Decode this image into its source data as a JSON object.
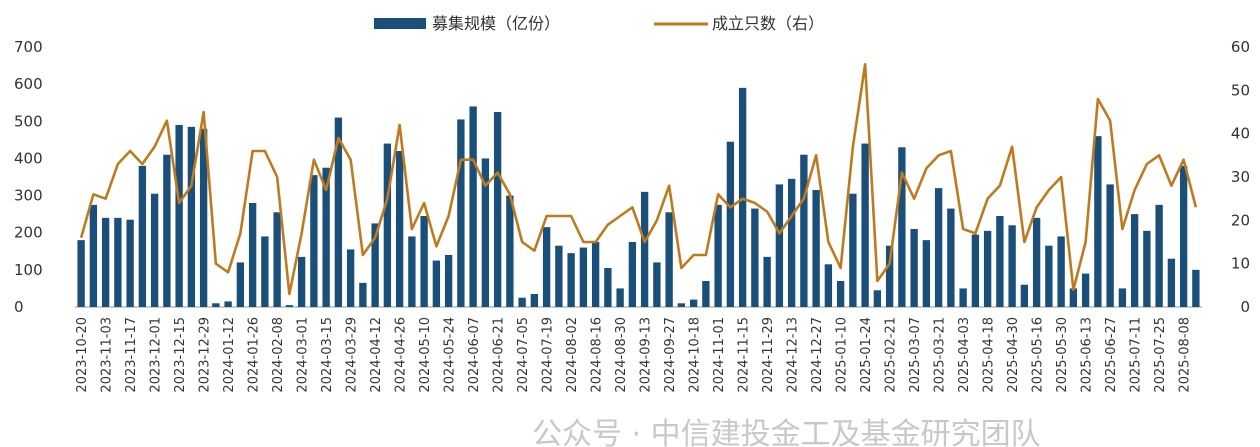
{
  "chart_data": {
    "type": "bar+line",
    "colors": {
      "bar": "#1a4f7a",
      "line": "#c07a1e"
    },
    "legend": {
      "placement": "top-center",
      "bar_label": "募集规模（亿份）",
      "line_label": "成立只数（右）"
    },
    "y_left": {
      "ylim": [
        0,
        700
      ],
      "ticks": [
        "0",
        "100",
        "200",
        "300",
        "400",
        "500",
        "600",
        "700"
      ]
    },
    "y_right": {
      "ylim": [
        0,
        60
      ],
      "ticks": [
        "0",
        "10",
        "20",
        "30",
        "40",
        "50",
        "60"
      ]
    },
    "x_tick_labels": [
      "2023-10-20",
      "2023-11-03",
      "2023-11-17",
      "2023-12-01",
      "2023-12-15",
      "2023-12-29",
      "2024-01-12",
      "2024-01-26",
      "2024-02-08",
      "2024-03-01",
      "2024-03-15",
      "2024-03-29",
      "2024-04-12",
      "2024-04-26",
      "2024-05-10",
      "2024-05-24",
      "2024-06-07",
      "2024-06-21",
      "2024-07-05",
      "2024-07-19",
      "2024-08-02",
      "2024-08-16",
      "2024-08-30",
      "2024-09-13",
      "2024-09-27",
      "2024-10-18",
      "2024-11-01",
      "2024-11-15",
      "2024-11-29",
      "2024-12-13",
      "2024-12-27",
      "2025-01-10",
      "2025-01-24",
      "2025-02-21",
      "2025-03-07",
      "2025-03-21",
      "2025-04-03",
      "2025-04-18",
      "2025-04-30",
      "2025-05-16",
      "2025-05-30",
      "2025-06-13",
      "2025-06-27",
      "2025-07-11",
      "2025-07-25",
      "2025-08-08"
    ],
    "series": [
      {
        "name": "募集规模（亿份）",
        "type": "bar",
        "axis": "left",
        "values": [
          180,
          275,
          240,
          240,
          235,
          380,
          305,
          410,
          490,
          485,
          480,
          10,
          15,
          120,
          280,
          190,
          255,
          5,
          135,
          355,
          375,
          510,
          155,
          65,
          225,
          440,
          420,
          190,
          245,
          125,
          140,
          505,
          540,
          400,
          525,
          300,
          25,
          35,
          215,
          165,
          145,
          160,
          175,
          105,
          50,
          175,
          310,
          120,
          255,
          10,
          20,
          70,
          275,
          445,
          590,
          265,
          135,
          330,
          345,
          410,
          315,
          115,
          70,
          305,
          440,
          45,
          165,
          430,
          210,
          180,
          320,
          265,
          50,
          195,
          205,
          245,
          220,
          60,
          240,
          165,
          190,
          50,
          90,
          460,
          330,
          50,
          250,
          205,
          275,
          130,
          380,
          100
        ]
      },
      {
        "name": "成立只数（右）",
        "type": "line",
        "axis": "right",
        "values": [
          16,
          26,
          25,
          33,
          36,
          33,
          37,
          43,
          24,
          28,
          45,
          10,
          8,
          17,
          36,
          36,
          30,
          3,
          17,
          34,
          27,
          39,
          34,
          12,
          16,
          25,
          42,
          18,
          24,
          14,
          21,
          34,
          34,
          28,
          31,
          26,
          15,
          13,
          21,
          21,
          21,
          15,
          15,
          19,
          21,
          23,
          15,
          20,
          28,
          9,
          12,
          12,
          26,
          23,
          25,
          24,
          22,
          17,
          21,
          25,
          35,
          15,
          9,
          37,
          56,
          6,
          10,
          31,
          25,
          32,
          35,
          36,
          18,
          17,
          25,
          28,
          37,
          15,
          23,
          27,
          30,
          4,
          15,
          48,
          43,
          18,
          27,
          33,
          35,
          28,
          34,
          23
        ]
      }
    ]
  },
  "watermark": "公众号 · 中信建投金工及基金研究团队"
}
